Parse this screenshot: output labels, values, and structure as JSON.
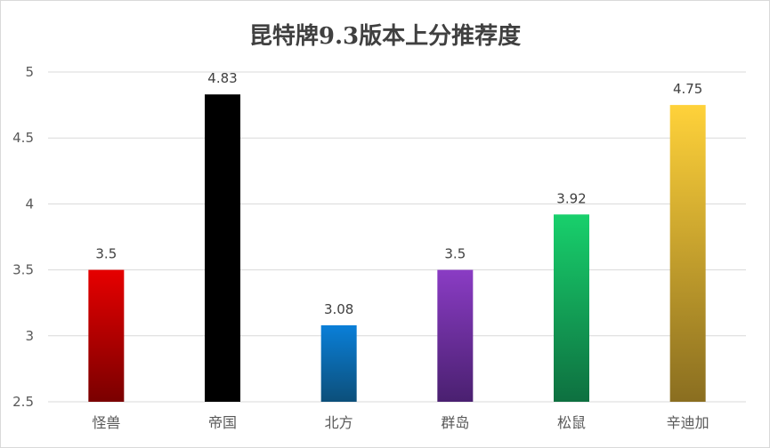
{
  "chart_data": {
    "type": "bar",
    "title": "昆特牌9.3版本上分推荐度",
    "xlabel": "",
    "ylabel": "",
    "categories": [
      "怪兽",
      "帝国",
      "北方",
      "群岛",
      "松鼠",
      "辛迪加"
    ],
    "values": [
      3.5,
      4.83,
      3.08,
      3.5,
      3.92,
      4.75
    ],
    "value_labels": [
      "3.5",
      "4.83",
      "3.08",
      "3.5",
      "3.92",
      "4.75"
    ],
    "ylim": [
      2.5,
      5
    ],
    "yticks": [
      2.5,
      3,
      3.5,
      4,
      4.5,
      5
    ],
    "ytick_labels": [
      "2.5",
      "3",
      "3.5",
      "4",
      "4.5",
      "5"
    ],
    "grid": true,
    "legend": "none",
    "colors": [
      {
        "top": "#e60000",
        "bottom": "#7a0000"
      },
      {
        "top": "#000000",
        "bottom": "#000000"
      },
      {
        "top": "#0a7fd8",
        "bottom": "#0c4f7a"
      },
      {
        "top": "#8a3cc4",
        "bottom": "#4a2070"
      },
      {
        "top": "#18d06c",
        "bottom": "#0e7040"
      },
      {
        "top": "#ffd23a",
        "bottom": "#8a6e20"
      }
    ]
  }
}
